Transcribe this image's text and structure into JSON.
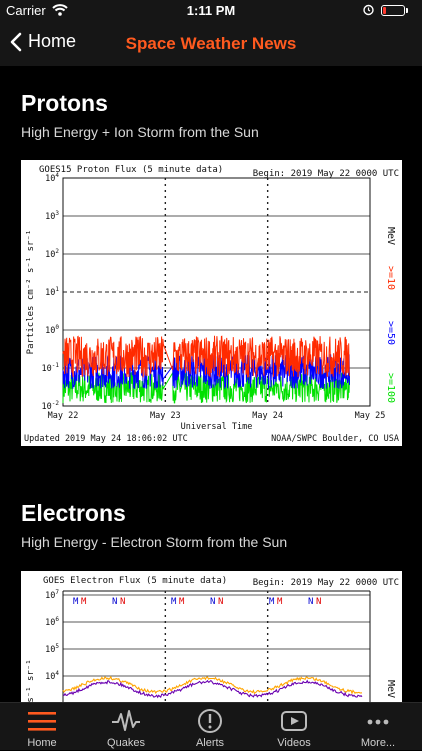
{
  "status_bar": {
    "carrier": "Carrier",
    "time": "1:11 PM",
    "battery_level": 0.15
  },
  "nav": {
    "back_label": "Home",
    "title": "Space Weather News"
  },
  "sections": [
    {
      "title": "Protons",
      "subtitle": "High Energy + Ion Storm from the Sun",
      "chart_data": {
        "type": "line",
        "title": "GOES15 Proton Flux (5 minute data)",
        "begin_label": "Begin: 2019 May 22 0000 UTC",
        "ylabel": "Particles cm⁻² s⁻¹ sr⁻¹",
        "xlabel": "Universal Time",
        "y_scale": "log",
        "ylim": [
          0.01,
          10000
        ],
        "y_ticks": [
          {
            "mant": "10",
            "exp": "4"
          },
          {
            "mant": "10",
            "exp": "3"
          },
          {
            "mant": "10",
            "exp": "2"
          },
          {
            "mant": "10",
            "exp": "1"
          },
          {
            "mant": "10",
            "exp": "0"
          },
          {
            "mant": "10",
            "exp": "-1"
          },
          {
            "mant": "10",
            "exp": "-2"
          }
        ],
        "x_ticks": [
          "May 22",
          "May 23",
          "May 24",
          "May 25"
        ],
        "threshold_line": 10,
        "series": [
          {
            "name": ">=10",
            "color": "#ff2a00",
            "typical_value": 0.2
          },
          {
            "name": ">=50",
            "color": "#0000ff",
            "typical_value": 0.08
          },
          {
            "name": ">=100",
            "color": "#00e000",
            "typical_value": 0.03
          }
        ],
        "right_unit": "MeV",
        "footer_left": "Updated 2019 May 24 18:06:02 UTC",
        "footer_right": "NOAA/SWPC Boulder, CO USA"
      }
    },
    {
      "title": "Electrons",
      "subtitle": "High Energy - Electron Storm from the Sun",
      "chart_data": {
        "type": "line",
        "title": "GOES Electron Flux (5 minute data)",
        "begin_label": "Begin: 2019 May 22 0000 UTC",
        "ylabel": "s⁻¹ sr⁻¹",
        "y_scale": "log",
        "y_ticks": [
          {
            "mant": "10",
            "exp": "7"
          },
          {
            "mant": "10",
            "exp": "6"
          },
          {
            "mant": "10",
            "exp": "5"
          },
          {
            "mant": "10",
            "exp": "4"
          }
        ],
        "markers": [
          [
            "M",
            "M"
          ],
          [
            "N",
            "N"
          ],
          [
            "M",
            "M"
          ],
          [
            "N",
            "N"
          ],
          [
            "M",
            "M"
          ],
          [
            "N",
            "N"
          ]
        ],
        "series": [
          {
            "name": "series-orange",
            "color": "#ffa500"
          },
          {
            "name": "series-purple",
            "color": "#6a00b0"
          }
        ],
        "right_unit": "MeV"
      }
    }
  ],
  "tabs": [
    {
      "label": "Home",
      "icon": "menu-icon",
      "active": true
    },
    {
      "label": "Quakes",
      "icon": "pulse-icon",
      "active": false
    },
    {
      "label": "Alerts",
      "icon": "alert-icon",
      "active": false
    },
    {
      "label": "Videos",
      "icon": "play-icon",
      "active": false
    },
    {
      "label": "More...",
      "icon": "more-icon",
      "active": false
    }
  ],
  "colors": {
    "accent": "#ff5a1f",
    "bar": "#161616",
    "background": "#000000"
  }
}
